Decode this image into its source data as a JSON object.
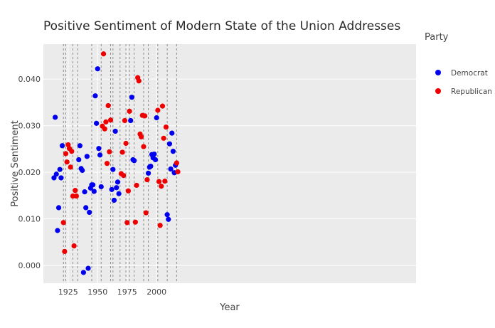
{
  "chart_data": {
    "type": "scatter",
    "title": "Positive Sentiment of Modern State of the Union Addresses",
    "xlabel": "Year",
    "ylabel": "Positive Sentiment",
    "xlim": [
      1904,
      2220
    ],
    "ylim": [
      -0.0038,
      0.0475
    ],
    "x_ticks": [
      1925,
      1950,
      1975,
      2000
    ],
    "x_tick_labels": [
      "1925",
      "1950",
      "1975",
      "2000"
    ],
    "y_ticks": [
      0,
      0.01,
      0.02,
      0.03,
      0.04
    ],
    "y_tick_labels": [
      "0.000",
      "0.010",
      "0.020",
      "0.030",
      "0.040"
    ],
    "grid": true,
    "legend_title": "Party",
    "legend_position": "right",
    "vertical_lines": [
      1921,
      1923,
      1929,
      1933,
      1945,
      1953,
      1961,
      1963,
      1969,
      1974,
      1977,
      1981,
      1989,
      1993,
      2001,
      2009,
      2017
    ],
    "series": [
      {
        "name": "Democrat",
        "color": "#0000ee",
        "points": [
          [
            1913,
            0.0188
          ],
          [
            1914,
            0.0318
          ],
          [
            1915,
            0.0196
          ],
          [
            1916,
            0.0075
          ],
          [
            1917,
            0.0124
          ],
          [
            1918,
            0.0206
          ],
          [
            1919,
            0.0188
          ],
          [
            1920,
            0.0257
          ],
          [
            1934,
            0.0227
          ],
          [
            1935,
            0.0257
          ],
          [
            1936,
            0.0208
          ],
          [
            1937,
            0.0204
          ],
          [
            1938,
            -0.0015
          ],
          [
            1939,
            0.0158
          ],
          [
            1940,
            0.0124
          ],
          [
            1941,
            0.0234
          ],
          [
            1942,
            -0.0006
          ],
          [
            1943,
            0.0114
          ],
          [
            1944,
            0.0166
          ],
          [
            1945,
            0.0173
          ],
          [
            1946,
            0.0173
          ],
          [
            1947,
            0.0159
          ],
          [
            1948,
            0.0364
          ],
          [
            1949,
            0.0305
          ],
          [
            1950,
            0.0422
          ],
          [
            1951,
            0.0251
          ],
          [
            1952,
            0.0237
          ],
          [
            1953,
            0.0169
          ],
          [
            1962,
            0.0163
          ],
          [
            1963,
            0.0206
          ],
          [
            1964,
            0.014
          ],
          [
            1965,
            0.0288
          ],
          [
            1966,
            0.0167
          ],
          [
            1967,
            0.0179
          ],
          [
            1968,
            0.0154
          ],
          [
            1978,
            0.0311
          ],
          [
            1979,
            0.0361
          ],
          [
            1980,
            0.0227
          ],
          [
            1981,
            0.0225
          ],
          [
            1993,
            0.0198
          ],
          [
            1994,
            0.0211
          ],
          [
            1995,
            0.0213
          ],
          [
            1996,
            0.0238
          ],
          [
            1997,
            0.0231
          ],
          [
            1998,
            0.0239
          ],
          [
            1999,
            0.0227
          ],
          [
            2000,
            0.0317
          ],
          [
            2009,
            0.0109
          ],
          [
            2010,
            0.0099
          ],
          [
            2011,
            0.0261
          ],
          [
            2012,
            0.0207
          ],
          [
            2013,
            0.0284
          ],
          [
            2014,
            0.0245
          ],
          [
            2015,
            0.0199
          ],
          [
            2016,
            0.0215
          ]
        ]
      },
      {
        "name": "Republican",
        "color": "#ee0000",
        "points": [
          [
            1921,
            0.0092
          ],
          [
            1922,
            0.003
          ],
          [
            1923,
            0.024
          ],
          [
            1924,
            0.0222
          ],
          [
            1925,
            0.0259
          ],
          [
            1926,
            0.0251
          ],
          [
            1927,
            0.0211
          ],
          [
            1928,
            0.0245
          ],
          [
            1929,
            0.0149
          ],
          [
            1930,
            0.0042
          ],
          [
            1931,
            0.0161
          ],
          [
            1932,
            0.0149
          ],
          [
            1954,
            0.0299
          ],
          [
            1955,
            0.0454
          ],
          [
            1956,
            0.0293
          ],
          [
            1957,
            0.0308
          ],
          [
            1958,
            0.0219
          ],
          [
            1959,
            0.0343
          ],
          [
            1960,
            0.0244
          ],
          [
            1961,
            0.0312
          ],
          [
            1970,
            0.0197
          ],
          [
            1971,
            0.0243
          ],
          [
            1972,
            0.0193
          ],
          [
            1973,
            0.0311
          ],
          [
            1974,
            0.0262
          ],
          [
            1975,
            0.0092
          ],
          [
            1976,
            0.016
          ],
          [
            1977,
            0.0331
          ],
          [
            1982,
            0.0093
          ],
          [
            1983,
            0.0172
          ],
          [
            1984,
            0.0403
          ],
          [
            1985,
            0.0396
          ],
          [
            1986,
            0.0282
          ],
          [
            1987,
            0.0276
          ],
          [
            1988,
            0.0322
          ],
          [
            1989,
            0.0255
          ],
          [
            1990,
            0.0321
          ],
          [
            1991,
            0.0113
          ],
          [
            1992,
            0.0184
          ],
          [
            2001,
            0.0333
          ],
          [
            2002,
            0.018
          ],
          [
            2003,
            0.0086
          ],
          [
            2004,
            0.017
          ],
          [
            2005,
            0.0342
          ],
          [
            2006,
            0.0273
          ],
          [
            2007,
            0.0181
          ],
          [
            2008,
            0.0297
          ],
          [
            2017,
            0.022
          ],
          [
            2018,
            0.0201
          ]
        ]
      }
    ]
  }
}
